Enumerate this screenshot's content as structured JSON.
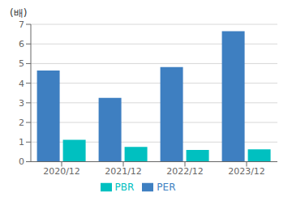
{
  "chart_data": {
    "type": "bar",
    "ylabel": "(배)",
    "categories": [
      "2020/12",
      "2021/12",
      "2022/12",
      "2023/12"
    ],
    "series": [
      {
        "name": "PER",
        "color": "#3e7fc1",
        "values": [
          4.65,
          3.25,
          4.82,
          6.65
        ]
      },
      {
        "name": "PBR",
        "color": "#00c0c0",
        "values": [
          1.12,
          0.75,
          0.6,
          0.63
        ]
      }
    ],
    "ylim": [
      0,
      7
    ],
    "yticks": [
      0,
      1,
      2,
      3,
      4,
      5,
      6,
      7
    ],
    "grid": true,
    "legend": "bottom"
  }
}
